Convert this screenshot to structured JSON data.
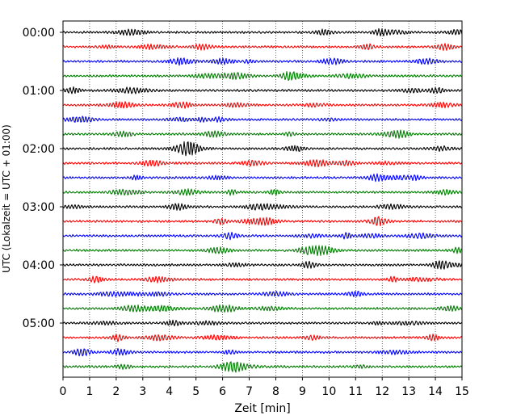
{
  "chart_data": {
    "type": "line",
    "title": "",
    "xlabel": "Zeit  [min]",
    "ylabel": "UTC (Lokalzeit = UTC + 01:00)",
    "xlim": [
      0,
      15
    ],
    "x_ticks": [
      "0",
      "1",
      "2",
      "3",
      "4",
      "5",
      "6",
      "7",
      "8",
      "9",
      "10",
      "11",
      "12",
      "13",
      "14",
      "15"
    ],
    "y_ticks": [
      "00:00",
      "01:00",
      "02:00",
      "03:00",
      "04:00",
      "05:00"
    ],
    "grid": "vertical dotted",
    "trace_interval_minutes": 15,
    "trace_count": 24,
    "trace_colors": [
      "#000000",
      "#ff0000",
      "#0000ff",
      "#007f00"
    ],
    "series": [
      {
        "start": "00:00"
      },
      {
        "start": "00:15"
      },
      {
        "start": "00:30"
      },
      {
        "start": "00:45"
      },
      {
        "start": "01:00"
      },
      {
        "start": "01:15"
      },
      {
        "start": "01:30"
      },
      {
        "start": "01:45"
      },
      {
        "start": "02:00"
      },
      {
        "start": "02:15"
      },
      {
        "start": "02:30"
      },
      {
        "start": "02:45"
      },
      {
        "start": "03:00"
      },
      {
        "start": "03:15"
      },
      {
        "start": "03:30"
      },
      {
        "start": "03:45"
      },
      {
        "start": "04:00"
      },
      {
        "start": "04:15"
      },
      {
        "start": "04:30"
      },
      {
        "start": "04:45"
      },
      {
        "start": "05:00"
      },
      {
        "start": "05:15"
      },
      {
        "start": "05:30"
      },
      {
        "start": "05:45"
      }
    ]
  }
}
